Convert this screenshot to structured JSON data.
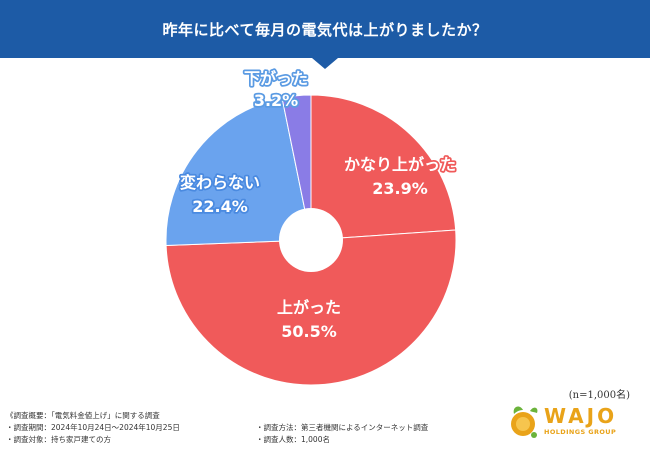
{
  "header": {
    "title": "昨年に比べて毎月の電気代は上がりましたか？"
  },
  "chart_data": {
    "type": "pie",
    "donut": true,
    "title": "昨年に比べて毎月の電気代は上がりましたか？",
    "categories": [
      "かなり上がった",
      "上がった",
      "変わらない",
      "下がった"
    ],
    "values": [
      23.9,
      50.5,
      22.4,
      3.2
    ],
    "value_labels": [
      "23.9%",
      "50.5%",
      "22.4%",
      "3.2%"
    ],
    "colors": [
      "#f05a5a",
      "#f05a5a",
      "#6aa3ee",
      "#8a7ce6"
    ],
    "label_outline_colors": [
      "#f05a5a",
      "#f05a5a",
      "#4a8ae0",
      "#5b9be3"
    ],
    "start": "12 o'clock, clockwise",
    "sample_size": "(n=1,000名)"
  },
  "notes": {
    "overview": "《調査概要：「電気料金値上げ」に関する調査",
    "period": "・調査期間：2024年10月24日～2024年10月25日",
    "target": "・調査対象：持ち家戸建ての方",
    "method": "・調査方法：第三者機関によるインターネット調査",
    "count": "・調査人数：1,000名"
  },
  "logo": {
    "wordmark": "WAJO",
    "subtitle": "HOLDINGS GROUP",
    "color": "#e9a319",
    "icon": "leaf-globe-icon"
  }
}
